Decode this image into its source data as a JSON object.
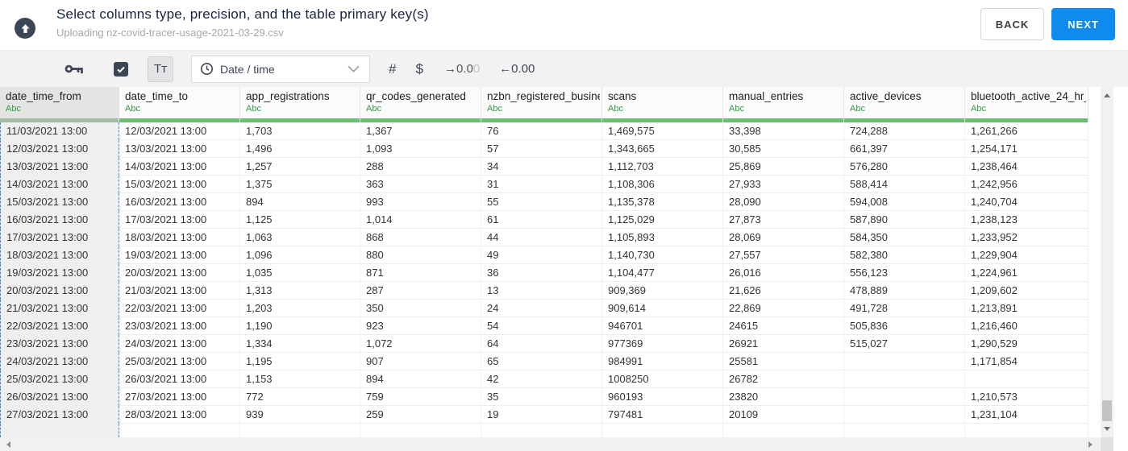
{
  "header": {
    "title": "Select columns type, precision, and the table primary key(s)",
    "subtitle": "Uploading nz-covid-tracer-usage-2021-03-29.csv",
    "back_label": "BACK",
    "next_label": "NEXT"
  },
  "toolbar": {
    "text_type_label": "Tᴛ",
    "type_dropdown_value": "Date / time",
    "number_type_label": "#",
    "currency_type_label": "$",
    "decimal_decrease": {
      "arrow": "→",
      "main": "0.0",
      "faded": "0"
    },
    "decimal_increase": {
      "arrow": "←",
      "value": "0.00"
    },
    "icons": [
      "primary-key-icon",
      "checkbox-checked-icon",
      "clock-icon",
      "chevron-down-icon"
    ]
  },
  "table": {
    "columns": [
      {
        "name": "date_time_from",
        "type": "Abc",
        "selected": true
      },
      {
        "name": "date_time_to",
        "type": "Abc",
        "selected": false
      },
      {
        "name": "app_registrations",
        "type": "Abc",
        "selected": false
      },
      {
        "name": "qr_codes_generated",
        "type": "Abc",
        "selected": false
      },
      {
        "name": "nzbn_registered_busine",
        "type": "Abc",
        "selected": false
      },
      {
        "name": "scans",
        "type": "Abc",
        "selected": false
      },
      {
        "name": "manual_entries",
        "type": "Abc",
        "selected": false
      },
      {
        "name": "active_devices",
        "type": "Abc",
        "selected": false
      },
      {
        "name": "bluetooth_active_24_hr_",
        "type": "Abc",
        "selected": false
      }
    ],
    "rows": [
      [
        "11/03/2021 13:00",
        "12/03/2021 13:00",
        "1,703",
        "1,367",
        "76",
        "1,469,575",
        "33,398",
        "724,288",
        "1,261,266"
      ],
      [
        "12/03/2021 13:00",
        "13/03/2021 13:00",
        "1,496",
        "1,093",
        "57",
        "1,343,665",
        "30,585",
        "661,397",
        "1,254,171"
      ],
      [
        "13/03/2021 13:00",
        "14/03/2021 13:00",
        "1,257",
        "288",
        "34",
        "1,112,703",
        "25,869",
        "576,280",
        "1,238,464"
      ],
      [
        "14/03/2021 13:00",
        "15/03/2021 13:00",
        "1,375",
        "363",
        "31",
        "1,108,306",
        "27,933",
        "588,414",
        "1,242,956"
      ],
      [
        "15/03/2021 13:00",
        "16/03/2021 13:00",
        "894",
        "993",
        "55",
        "1,135,378",
        "28,090",
        "594,008",
        "1,240,704"
      ],
      [
        "16/03/2021 13:00",
        "17/03/2021 13:00",
        "1,125",
        "1,014",
        "61",
        "1,125,029",
        "27,873",
        "587,890",
        "1,238,123"
      ],
      [
        "17/03/2021 13:00",
        "18/03/2021 13:00",
        "1,063",
        "868",
        "44",
        "1,105,893",
        "28,069",
        "584,350",
        "1,233,952"
      ],
      [
        "18/03/2021 13:00",
        "19/03/2021 13:00",
        "1,096",
        "880",
        "49",
        "1,140,730",
        "27,557",
        "582,380",
        "1,229,904"
      ],
      [
        "19/03/2021 13:00",
        "20/03/2021 13:00",
        "1,035",
        "871",
        "36",
        "1,104,477",
        "26,016",
        "556,123",
        "1,224,961"
      ],
      [
        "20/03/2021 13:00",
        "21/03/2021 13:00",
        "1,313",
        "287",
        "13",
        "909,369",
        "21,626",
        "478,889",
        "1,209,602"
      ],
      [
        "21/03/2021 13:00",
        "22/03/2021 13:00",
        "1,203",
        "350",
        "24",
        "909,614",
        "22,869",
        "491,728",
        "1,213,891"
      ],
      [
        "22/03/2021 13:00",
        "23/03/2021 13:00",
        "1,190",
        "923",
        "54",
        "946701",
        "24615",
        "505,836",
        "1,216,460"
      ],
      [
        "23/03/2021 13:00",
        "24/03/2021 13:00",
        "1,334",
        "1,072",
        "64",
        "977369",
        "26921",
        "515,027",
        "1,290,529"
      ],
      [
        "24/03/2021 13:00",
        "25/03/2021 13:00",
        "1,195",
        "907",
        "65",
        "984991",
        "25581",
        "",
        "1,171,854"
      ],
      [
        "25/03/2021 13:00",
        "26/03/2021 13:00",
        "1,153",
        "894",
        "42",
        "1008250",
        "26782",
        "",
        ""
      ],
      [
        "26/03/2021 13:00",
        "27/03/2021 13:00",
        "772",
        "759",
        "35",
        "960193",
        "23820",
        "",
        "1,210,573"
      ],
      [
        "27/03/2021 13:00",
        "28/03/2021 13:00",
        "939",
        "259",
        "19",
        "797481",
        "20109",
        "",
        "1,231,104"
      ]
    ]
  },
  "colors": {
    "accent_blue": "#0f8bf0",
    "type_green": "#2f9e41",
    "bar_green": "#68bf6d",
    "selection_blue": "#4a80d2"
  }
}
